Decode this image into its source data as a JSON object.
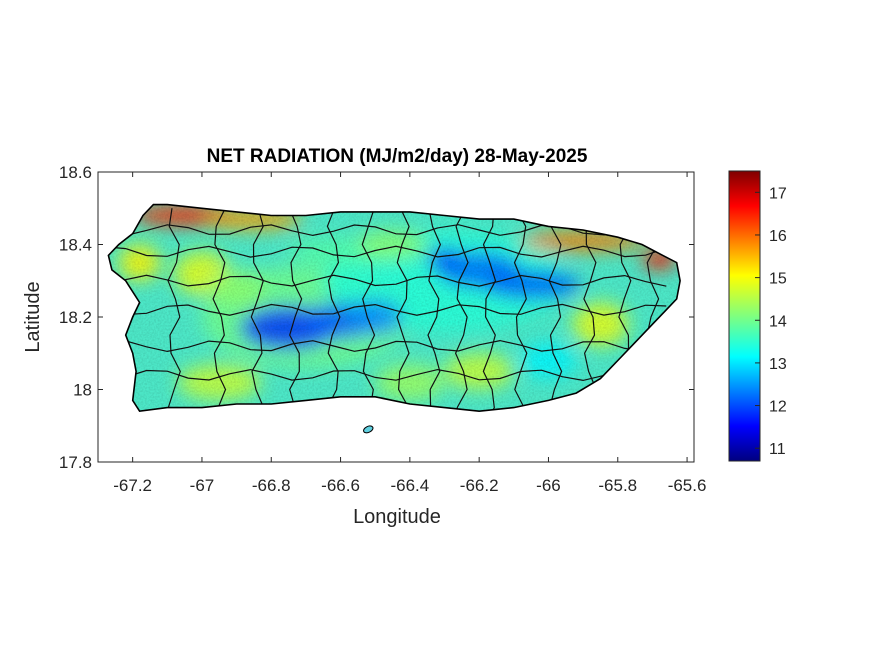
{
  "chart_data": {
    "type": "heatmap",
    "title": "NET RADIATION (MJ/m2/day) 28-May-2025",
    "xlabel": "Longitude",
    "ylabel": "Latitude",
    "xlim": [
      -67.3,
      -65.58
    ],
    "ylim": [
      17.8,
      18.6
    ],
    "x_ticks": [
      -67.2,
      -67,
      -66.8,
      -66.6,
      -66.4,
      -66.2,
      -66,
      -65.8,
      -65.6
    ],
    "x_tick_labels": [
      "-67.2",
      "-67",
      "-66.8",
      "-66.6",
      "-66.4",
      "-66.2",
      "-66",
      "-65.8",
      "-65.6"
    ],
    "y_ticks": [
      17.8,
      18,
      18.2,
      18.4,
      18.6
    ],
    "y_tick_labels": [
      "17.8",
      "18",
      "18.2",
      "18.4",
      "18.6"
    ],
    "colorbar": {
      "colormap": "jet",
      "range": [
        10.7,
        17.5
      ],
      "ticks": [
        11,
        12,
        13,
        14,
        15,
        16,
        17
      ],
      "tick_labels": [
        "11",
        "12",
        "13",
        "14",
        "15",
        "16",
        "17"
      ]
    },
    "grid": false,
    "regions": [
      {
        "region": "north coast (west)",
        "approx_value": 16.5
      },
      {
        "region": "north-east coast",
        "approx_value": 16.0
      },
      {
        "region": "central mountains",
        "approx_value": 12.2
      },
      {
        "region": "east-central corridor",
        "approx_value": 12.0
      },
      {
        "region": "south coast",
        "approx_value": 14.2
      },
      {
        "region": "west / south-west",
        "approx_value": 14.0
      }
    ]
  }
}
